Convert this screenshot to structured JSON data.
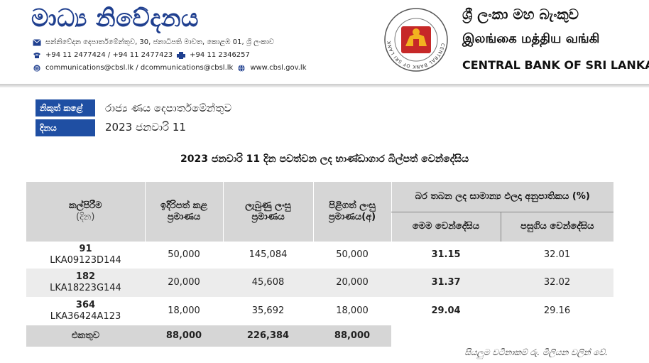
{
  "header": {
    "title": "මාධ්‍ය නිවේදනය",
    "address": "සන්නිවේදන දෙපාර්තමේන්තුව, 30, ජනාධිපති මාවත, කොළඹ 01, ශ්‍රී ලංකාව",
    "phone": "+94 11 2477424 / +94 11 2477423",
    "fax": "+94 11  2346257",
    "email": "communications@cbsl.lk / dcommunications@cbsl.lk",
    "web": "www.cbsl.gov.lk",
    "bank_name_si": "ශ්‍රී ලංකා මහ බැංකුව",
    "bank_name_ta": "இலங்கை மத்திய வங்கி",
    "bank_name_en": "CENTRAL BANK OF SRI LANKA",
    "seal_text": "CENTRAL BANK OF SRI LANKA"
  },
  "meta": {
    "issuer_label": "නිකුත් කළේ",
    "issuer_value": "රාජ්‍ය ණය දෙපාර්තමේන්තුව",
    "date_label": "දිනය",
    "date_value": "2023 ජනවාරි 11"
  },
  "doc_title": "2023 ජනවාරි 11 දින පවත්වන ලද භාණ්ඩාගාර බිල්පත් වෙන්දේසිය",
  "table": {
    "headers": {
      "maturity": "කල්පිරීම",
      "maturity_unit": "(දින)",
      "offered": "ඉදිරිපත් කළ ප්‍රමාණය",
      "received": "ලැබුණු ලංසු ප්‍රමාණය",
      "accepted": "පිළිගත් ලංසු ප්‍රමාණය(අ)",
      "yield": "බර තබන ලද සාමාන්‍ය ඵලදා අනුපාතිකය (%)",
      "this_auction": "මෙම වෙන්දේසිය",
      "previous_auction": "පසුගිය වෙන්දේසිය"
    },
    "rows": [
      {
        "days": "91",
        "isin": "LKA09123D144",
        "offered": "50,000",
        "received": "145,084",
        "accepted": "50,000",
        "this": "31.15",
        "prev": "32.01"
      },
      {
        "days": "182",
        "isin": "LKA18223G144",
        "offered": "20,000",
        "received": "45,608",
        "accepted": "20,000",
        "this": "31.37",
        "prev": "32.02"
      },
      {
        "days": "364",
        "isin": "LKA36424A123",
        "offered": "18,000",
        "received": "35,692",
        "accepted": "18,000",
        "this": "29.04",
        "prev": "29.16"
      }
    ],
    "total": {
      "label": "එකතුව",
      "offered": "88,000",
      "received": "226,384",
      "accepted": "88,000"
    }
  },
  "note": "සියලුම වටිනාකම් රු. මිලියන වලින් වේ.",
  "colors": {
    "brand_blue": "#1f3f8f",
    "label_blue": "#1f4fa3",
    "header_gray": "#d6d6d6",
    "seal_red": "#c62828"
  }
}
